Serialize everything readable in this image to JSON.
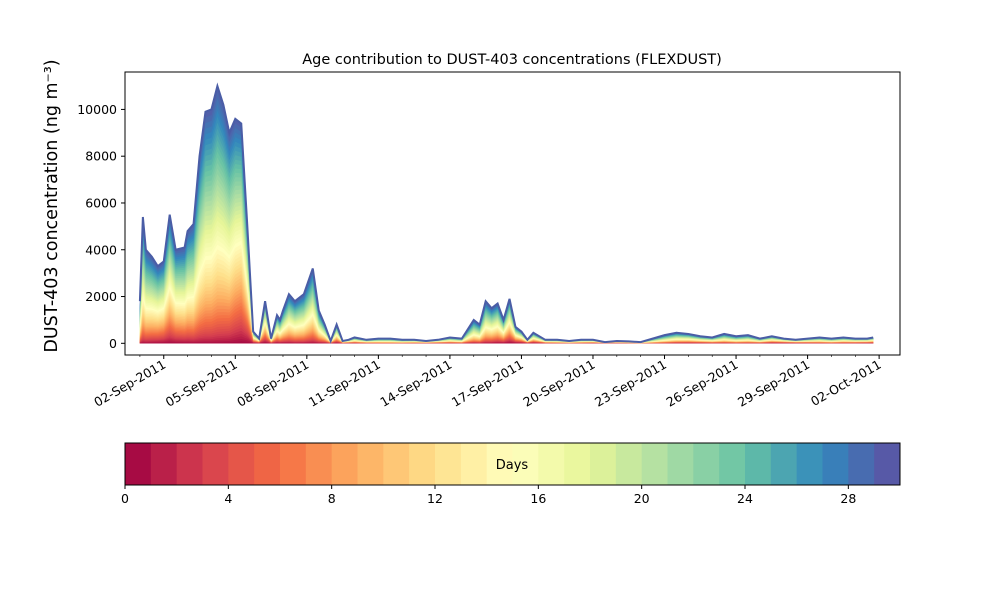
{
  "chart_data": {
    "type": "area",
    "title": "Age contribution to DUST-403 concentrations (FLEXDUST)",
    "ylabel": "DUST-403 concentration (ng m⁻³)",
    "xlabel": "",
    "xlim": [
      "2011-08-31T09:00",
      "2011-10-02T21:00"
    ],
    "ylim": [
      -500,
      11600
    ],
    "grid": false,
    "x_ticks": [
      "02-Sep-2011",
      "05-Sep-2011",
      "08-Sep-2011",
      "11-Sep-2011",
      "14-Sep-2011",
      "17-Sep-2011",
      "20-Sep-2011",
      "23-Sep-2011",
      "26-Sep-2011",
      "29-Sep-2011",
      "02-Oct-2011"
    ],
    "y_ticks": [
      0,
      2000,
      4000,
      6000,
      8000,
      10000
    ],
    "colormap": "Spectral",
    "colorbar": {
      "label": "Days",
      "range": [
        0,
        30
      ],
      "steps": 30,
      "ticks": [
        0,
        4,
        8,
        12,
        16,
        20,
        24,
        28
      ]
    },
    "total_series": {
      "x": [
        "2011-09-01T00:00",
        "2011-09-01T03:00",
        "2011-09-01T06:00",
        "2011-09-01T12:00",
        "2011-09-01T18:00",
        "2011-09-02T00:00",
        "2011-09-02T06:00",
        "2011-09-02T12:00",
        "2011-09-02T21:00",
        "2011-09-03T00:00",
        "2011-09-03T06:00",
        "2011-09-03T12:00",
        "2011-09-03T18:00",
        "2011-09-04T00:00",
        "2011-09-04T06:00",
        "2011-09-04T12:00",
        "2011-09-04T18:00",
        "2011-09-05T00:00",
        "2011-09-05T06:00",
        "2011-09-05T12:00",
        "2011-09-05T18:00",
        "2011-09-06T00:00",
        "2011-09-06T06:00",
        "2011-09-06T12:00",
        "2011-09-06T18:00",
        "2011-09-06T21:00",
        "2011-09-07T00:00",
        "2011-09-07T06:00",
        "2011-09-07T12:00",
        "2011-09-07T21:00",
        "2011-09-08T06:00",
        "2011-09-08T12:00",
        "2011-09-08T18:00",
        "2011-09-09T00:00",
        "2011-09-09T06:00",
        "2011-09-09T12:00",
        "2011-09-09T18:00",
        "2011-09-10T00:00",
        "2011-09-10T06:00",
        "2011-09-10T12:00",
        "2011-09-11T00:00",
        "2011-09-11T12:00",
        "2011-09-12T00:00",
        "2011-09-12T12:00",
        "2011-09-13T00:00",
        "2011-09-13T12:00",
        "2011-09-14T00:00",
        "2011-09-14T12:00",
        "2011-09-15T00:00",
        "2011-09-15T06:00",
        "2011-09-15T12:00",
        "2011-09-15T18:00",
        "2011-09-16T00:00",
        "2011-09-16T06:00",
        "2011-09-16T12:00",
        "2011-09-16T18:00",
        "2011-09-17T00:00",
        "2011-09-17T06:00",
        "2011-09-17T12:00",
        "2011-09-18T00:00",
        "2011-09-18T12:00",
        "2011-09-19T00:00",
        "2011-09-19T12:00",
        "2011-09-20T00:00",
        "2011-09-20T12:00",
        "2011-09-21T00:00",
        "2011-09-21T12:00",
        "2011-09-22T00:00",
        "2011-09-22T12:00",
        "2011-09-23T00:00",
        "2011-09-23T12:00",
        "2011-09-24T00:00",
        "2011-09-24T12:00",
        "2011-09-25T00:00",
        "2011-09-25T12:00",
        "2011-09-26T00:00",
        "2011-09-26T12:00",
        "2011-09-27T00:00",
        "2011-09-27T12:00",
        "2011-09-28T00:00",
        "2011-09-28T12:00",
        "2011-09-29T00:00",
        "2011-09-29T12:00",
        "2011-09-30T00:00",
        "2011-09-30T12:00",
        "2011-10-01T00:00",
        "2011-10-01T12:00",
        "2011-10-01T18:00"
      ],
      "y": [
        1800,
        5400,
        4000,
        3700,
        3300,
        3500,
        5500,
        4000,
        4100,
        4800,
        5100,
        8000,
        9900,
        10000,
        11000,
        10200,
        9000,
        9600,
        9400,
        5100,
        500,
        200,
        1800,
        200,
        1200,
        1000,
        1400,
        2100,
        1800,
        2100,
        3200,
        1400,
        800,
        100,
        800,
        100,
        150,
        250,
        200,
        150,
        200,
        200,
        150,
        150,
        100,
        150,
        250,
        200,
        1000,
        800,
        1800,
        1500,
        1700,
        1000,
        1900,
        700,
        500,
        150,
        450,
        150,
        150,
        100,
        150,
        150,
        50,
        100,
        80,
        50,
        200,
        350,
        450,
        400,
        300,
        250,
        400,
        300,
        350,
        200,
        300,
        200,
        150,
        200,
        250,
        200,
        250,
        200,
        200,
        250
      ]
    }
  }
}
